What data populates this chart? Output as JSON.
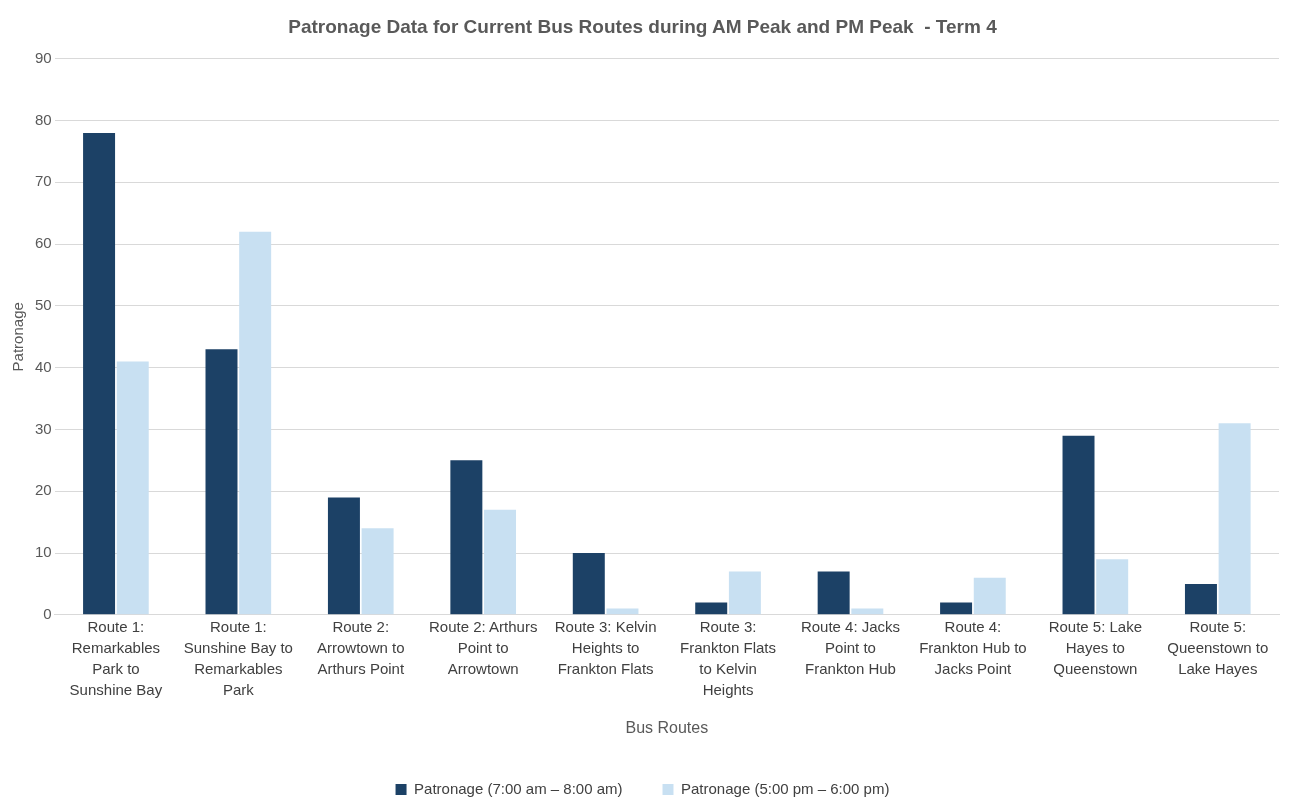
{
  "chart_data": {
    "type": "bar",
    "title": "Patronage Data for Current Bus Routes during AM Peak and PM Peak  - Term 4",
    "xlabel": "Bus Routes",
    "ylabel": "Patronage",
    "categories": [
      "Route 1: Remarkables Park to Sunshine Bay",
      "Route 1: Sunshine Bay to Remarkables Park",
      "Route 2: Arrowtown to Arthurs Point",
      "Route 2: Arthurs Point to Arrowtown",
      "Route 3: Kelvin Heights to Frankton Flats",
      "Route 3: Frankton Flats to Kelvin Heights",
      "Route 4: Jacks Point to Frankton Hub",
      "Route 4: Frankton Hub to Jacks Point",
      "Route 5: Lake Hayes to Queenstown",
      "Route 5: Queenstown to Lake Hayes"
    ],
    "series": [
      {
        "name": "Patronage (7:00 am – 8:00 am)",
        "color": "#1c4166",
        "values": [
          78,
          43,
          19,
          25,
          10,
          2,
          7,
          2,
          29,
          5
        ]
      },
      {
        "name": "Patronage (5:00 pm – 6:00 pm)",
        "color": "#c8e0f2",
        "values": [
          41,
          62,
          14,
          17,
          1,
          7,
          1,
          6,
          9,
          31
        ]
      }
    ],
    "ylim": [
      0,
      90
    ],
    "yticks": [
      0,
      10,
      20,
      30,
      40,
      50,
      60,
      70,
      80,
      90
    ],
    "grid": "y",
    "legend": "bottom"
  }
}
